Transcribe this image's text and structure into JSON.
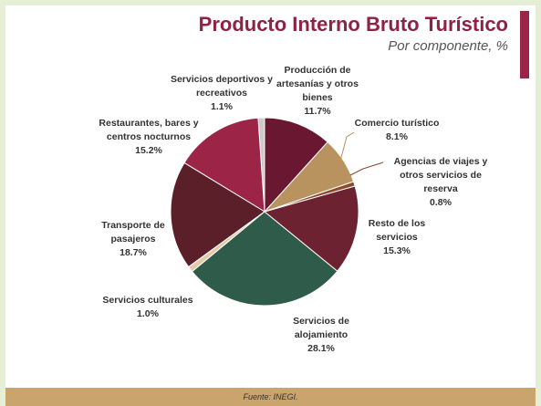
{
  "chart_data": {
    "type": "pie",
    "title": "Producto Interno Bruto Turístico",
    "subtitle": "Por componente, %",
    "source": "Fuente: INEGI.",
    "categories": [
      "Producción de artesanías y otros bienes",
      "Comercio turístico",
      "Agencias de viajes y otros servicios de reserva",
      "Resto de los servicios",
      "Servicios de alojamiento",
      "Servicios culturales",
      "Transporte de pasajeros",
      "Restaurantes, bares y centros nocturnos",
      "Servicios deportivos y recreativos"
    ],
    "values": [
      11.7,
      8.1,
      0.8,
      15.3,
      28.1,
      1.0,
      18.7,
      15.2,
      1.1
    ],
    "value_labels": [
      "11.7%",
      "8.1%",
      "0.8%",
      "15.3%",
      "28.1%",
      "1.0%",
      "18.7%",
      "15.2%",
      "1.1%"
    ],
    "colors": [
      "#6a1732",
      "#b8935f",
      "#8a4b2c",
      "#6c2231",
      "#2f5b4b",
      "#e3cba9",
      "#5b1f29",
      "#9c2547",
      "#cbcbcb"
    ]
  }
}
